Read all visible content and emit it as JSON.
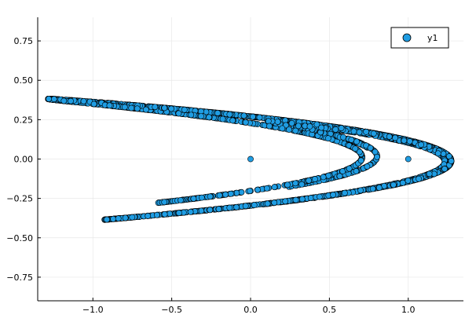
{
  "chart_data": {
    "type": "scatter",
    "title": "",
    "xlabel": "",
    "ylabel": "",
    "xlim": [
      -1.35,
      1.35
    ],
    "ylim": [
      -0.9,
      0.9
    ],
    "xticks": [
      -1.0,
      -0.5,
      0.0,
      0.5,
      1.0
    ],
    "xtick_labels": [
      "−1.0",
      "−0.5",
      "0.0",
      "0.5",
      "1.0"
    ],
    "yticks": [
      -0.75,
      -0.5,
      -0.25,
      0.0,
      0.25,
      0.5,
      0.75
    ],
    "ytick_labels": [
      "−0.75",
      "−0.50",
      "−0.25",
      "0.00",
      "0.25",
      "0.50",
      "0.75"
    ],
    "grid": true,
    "legend_position": "top-right",
    "series": [
      {
        "name": "y1",
        "color": "#1f9de3",
        "edge_color": "#000000",
        "attractor": {
          "map": "henon-like",
          "a": 1.4,
          "b": 0.3,
          "scale_x": 1.0,
          "scale_y": 1.0
        },
        "extra_points": [
          [
            0.0,
            0.0
          ],
          [
            1.0,
            0.0
          ]
        ]
      }
    ]
  }
}
